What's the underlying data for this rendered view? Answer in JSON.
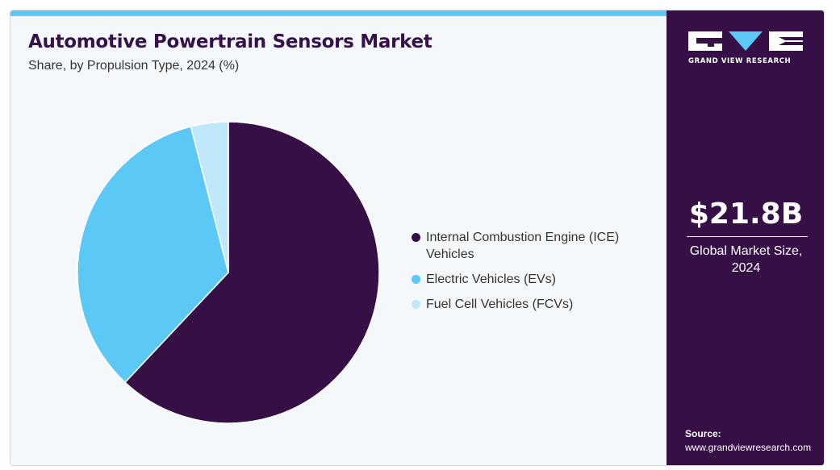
{
  "header": {
    "title": "Automotive Powertrain Sensors Market",
    "subtitle": "Share, by Propulsion Type, 2024 (%)"
  },
  "sidebar": {
    "logo_text": "GRAND VIEW RESEARCH",
    "market_size": "$21.8B",
    "market_size_label": "Global Market Size, 2024",
    "source_heading": "Source:",
    "source_url": "www.grandviewresearch.com"
  },
  "colors": {
    "accent_bar": "#5bc8f5",
    "sidebar_bg": "#350f46",
    "ice": "#350f46",
    "ev": "#5bc8f5",
    "fcv": "#bfe9fa"
  },
  "chart_data": {
    "type": "pie",
    "title": "Automotive Powertrain Sensors Market",
    "subtitle": "Share, by Propulsion Type, 2024 (%)",
    "legend_position": "right",
    "start_angle": "12 o'clock",
    "direction": "clockwise",
    "categories": [
      "Internal Combustion Engine (ICE) Vehicles",
      "Electric Vehicles (EVs)",
      "Fuel Cell Vehicles (FCVs)"
    ],
    "values": [
      62,
      34,
      4
    ],
    "colors": [
      "#350f46",
      "#5bc8f5",
      "#bfe9fa"
    ]
  }
}
